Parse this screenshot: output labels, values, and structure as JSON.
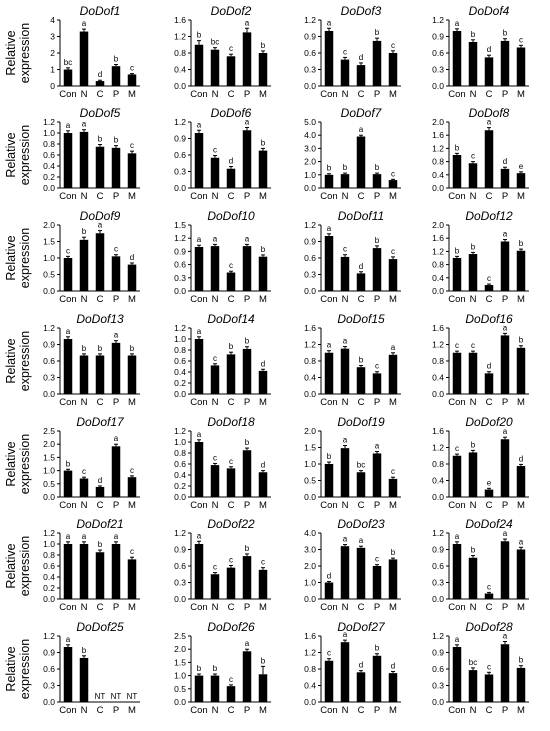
{
  "ylabel": [
    "Relative",
    "expression"
  ],
  "categories": [
    "Con",
    "N",
    "C",
    "P",
    "M"
  ],
  "chart_data": [
    {
      "type": "bar",
      "title": "DoDof1",
      "categories": [
        "Con",
        "N",
        "C",
        "P",
        "M"
      ],
      "values": [
        1.0,
        3.3,
        0.3,
        1.2,
        0.7
      ],
      "errors": [
        0.1,
        0.15,
        0.05,
        0.1,
        0.05
      ],
      "ylim": [
        0,
        4
      ],
      "yticks": [
        "0",
        "1",
        "2",
        "3",
        "4"
      ],
      "labels": [
        "bc",
        "a",
        "d",
        "b",
        "c"
      ]
    },
    {
      "type": "bar",
      "title": "DoDof2",
      "categories": [
        "Con",
        "N",
        "C",
        "P",
        "M"
      ],
      "values": [
        1.0,
        0.88,
        0.72,
        1.3,
        0.8
      ],
      "errors": [
        0.1,
        0.05,
        0.05,
        0.1,
        0.05
      ],
      "ylim": [
        0,
        1.6
      ],
      "yticks": [
        "0.0",
        "0.4",
        "0.8",
        "1.2",
        "1.6"
      ],
      "labels": [
        "b",
        "bc",
        "c",
        "a",
        "b"
      ]
    },
    {
      "type": "bar",
      "title": "DoDof3",
      "categories": [
        "Con",
        "N",
        "C",
        "P",
        "M"
      ],
      "values": [
        1.0,
        0.48,
        0.38,
        0.82,
        0.6
      ],
      "errors": [
        0.05,
        0.04,
        0.04,
        0.05,
        0.04
      ],
      "ylim": [
        0,
        1.2
      ],
      "yticks": [
        "0.0",
        "0.3",
        "0.6",
        "0.9",
        "1.2"
      ],
      "labels": [
        "a",
        "c",
        "d",
        "b",
        "c"
      ]
    },
    {
      "type": "bar",
      "title": "DoDof4",
      "categories": [
        "Con",
        "N",
        "C",
        "P",
        "M"
      ],
      "values": [
        1.0,
        0.8,
        0.52,
        0.82,
        0.7
      ],
      "errors": [
        0.04,
        0.04,
        0.04,
        0.04,
        0.04
      ],
      "ylim": [
        0,
        1.2
      ],
      "yticks": [
        "0.0",
        "0.3",
        "0.6",
        "0.9",
        "1.2"
      ],
      "labels": [
        "a",
        "b",
        "d",
        "b",
        "c"
      ]
    },
    {
      "type": "bar",
      "title": "DoDof5",
      "categories": [
        "Con",
        "N",
        "C",
        "P",
        "M"
      ],
      "values": [
        1.0,
        1.02,
        0.75,
        0.73,
        0.63
      ],
      "errors": [
        0.04,
        0.04,
        0.04,
        0.04,
        0.04
      ],
      "ylim": [
        0,
        1.2
      ],
      "yticks": [
        "0.0",
        "0.2",
        "0.4",
        "0.6",
        "0.8",
        "1.0",
        "1.2"
      ],
      "labels": [
        "a",
        "a",
        "b",
        "b",
        "c"
      ]
    },
    {
      "type": "bar",
      "title": "DoDof6",
      "categories": [
        "Con",
        "N",
        "C",
        "P",
        "M"
      ],
      "values": [
        1.0,
        0.55,
        0.35,
        1.05,
        0.68
      ],
      "errors": [
        0.05,
        0.04,
        0.04,
        0.05,
        0.04
      ],
      "ylim": [
        0,
        1.2
      ],
      "yticks": [
        "0.0",
        "0.3",
        "0.6",
        "0.9",
        "1.2"
      ],
      "labels": [
        "a",
        "c",
        "d",
        "a",
        "b"
      ]
    },
    {
      "type": "bar",
      "title": "DoDof7",
      "categories": [
        "Con",
        "N",
        "C",
        "P",
        "M"
      ],
      "values": [
        1.0,
        1.05,
        3.9,
        1.05,
        0.6
      ],
      "errors": [
        0.08,
        0.08,
        0.1,
        0.08,
        0.06
      ],
      "ylim": [
        0,
        5
      ],
      "yticks": [
        "0.0",
        "1.0",
        "2.0",
        "3.0",
        "4.0",
        "5.0"
      ],
      "labels": [
        "b",
        "b",
        "a",
        "b",
        "c"
      ]
    },
    {
      "type": "bar",
      "title": "DoDof8",
      "categories": [
        "Con",
        "N",
        "C",
        "P",
        "M"
      ],
      "values": [
        1.0,
        0.75,
        1.75,
        0.58,
        0.45
      ],
      "errors": [
        0.05,
        0.05,
        0.08,
        0.05,
        0.04
      ],
      "ylim": [
        0,
        2.0
      ],
      "yticks": [
        "0.0",
        "0.4",
        "0.8",
        "1.2",
        "1.6",
        "2.0"
      ],
      "labels": [
        "b",
        "c",
        "a",
        "d",
        "e"
      ]
    },
    {
      "type": "bar",
      "title": "DoDof9",
      "categories": [
        "Con",
        "N",
        "C",
        "P",
        "M"
      ],
      "values": [
        1.0,
        1.55,
        1.75,
        1.05,
        0.8
      ],
      "errors": [
        0.05,
        0.08,
        0.08,
        0.05,
        0.05
      ],
      "ylim": [
        0,
        2.0
      ],
      "yticks": [
        "0.0",
        "0.5",
        "1.0",
        "1.5",
        "2.0"
      ],
      "labels": [
        "c",
        "b",
        "a",
        "c",
        "d"
      ]
    },
    {
      "type": "bar",
      "title": "DoDof10",
      "categories": [
        "Con",
        "N",
        "C",
        "P",
        "M"
      ],
      "values": [
        1.0,
        1.02,
        0.42,
        1.02,
        0.78
      ],
      "errors": [
        0.04,
        0.04,
        0.03,
        0.04,
        0.04
      ],
      "ylim": [
        0,
        1.5
      ],
      "yticks": [
        "0.0",
        "0.3",
        "0.6",
        "0.9",
        "1.2",
        "1.5"
      ],
      "labels": [
        "a",
        "a",
        "c",
        "a",
        "b"
      ]
    },
    {
      "type": "bar",
      "title": "DoDof11",
      "categories": [
        "Con",
        "N",
        "C",
        "P",
        "M"
      ],
      "values": [
        1.0,
        0.62,
        0.32,
        0.78,
        0.58
      ],
      "errors": [
        0.04,
        0.04,
        0.03,
        0.04,
        0.04
      ],
      "ylim": [
        0,
        1.2
      ],
      "yticks": [
        "0.0",
        "0.3",
        "0.6",
        "0.9",
        "1.2"
      ],
      "labels": [
        "a",
        "c",
        "d",
        "b",
        "c"
      ]
    },
    {
      "type": "bar",
      "title": "DoDof12",
      "categories": [
        "Con",
        "N",
        "C",
        "P",
        "M"
      ],
      "values": [
        1.0,
        1.12,
        0.18,
        1.5,
        1.22
      ],
      "errors": [
        0.05,
        0.05,
        0.03,
        0.06,
        0.05
      ],
      "ylim": [
        0,
        2.0
      ],
      "yticks": [
        "0.0",
        "0.4",
        "0.8",
        "1.2",
        "1.6",
        "2.0"
      ],
      "labels": [
        "b",
        "b",
        "c",
        "a",
        "b"
      ]
    },
    {
      "type": "bar",
      "title": "DoDof13",
      "categories": [
        "Con",
        "N",
        "C",
        "P",
        "M"
      ],
      "values": [
        1.0,
        0.7,
        0.7,
        0.93,
        0.7
      ],
      "errors": [
        0.04,
        0.03,
        0.03,
        0.04,
        0.03
      ],
      "ylim": [
        0,
        1.2
      ],
      "yticks": [
        "0.0",
        "0.3",
        "0.6",
        "0.9",
        "1.2"
      ],
      "labels": [
        "a",
        "b",
        "b",
        "a",
        "b"
      ]
    },
    {
      "type": "bar",
      "title": "DoDof14",
      "categories": [
        "Con",
        "N",
        "C",
        "P",
        "M"
      ],
      "values": [
        1.0,
        0.52,
        0.72,
        0.82,
        0.42
      ],
      "errors": [
        0.04,
        0.03,
        0.04,
        0.04,
        0.03
      ],
      "ylim": [
        0,
        1.2
      ],
      "yticks": [
        "0.0",
        "0.2",
        "0.4",
        "0.6",
        "0.8",
        "1.0",
        "1.2"
      ],
      "labels": [
        "a",
        "c",
        "b",
        "b",
        "d"
      ]
    },
    {
      "type": "bar",
      "title": "DoDof15",
      "categories": [
        "Con",
        "N",
        "C",
        "P",
        "M"
      ],
      "values": [
        1.0,
        1.1,
        0.65,
        0.5,
        0.95
      ],
      "errors": [
        0.05,
        0.05,
        0.04,
        0.04,
        0.05
      ],
      "ylim": [
        0,
        1.6
      ],
      "yticks": [
        "0.0",
        "0.4",
        "0.8",
        "1.2",
        "1.6"
      ],
      "labels": [
        "a",
        "a",
        "b",
        "c",
        "a"
      ]
    },
    {
      "type": "bar",
      "title": "DoDof16",
      "categories": [
        "Con",
        "N",
        "C",
        "P",
        "M"
      ],
      "values": [
        1.0,
        1.0,
        0.5,
        1.42,
        1.12
      ],
      "errors": [
        0.04,
        0.04,
        0.04,
        0.05,
        0.05
      ],
      "ylim": [
        0,
        1.6
      ],
      "yticks": [
        "0.0",
        "0.4",
        "0.8",
        "1.2",
        "1.6"
      ],
      "labels": [
        "c",
        "c",
        "d",
        "a",
        "b"
      ]
    },
    {
      "type": "bar",
      "title": "DoDof17",
      "categories": [
        "Con",
        "N",
        "C",
        "P",
        "M"
      ],
      "values": [
        1.0,
        0.7,
        0.38,
        1.92,
        0.75
      ],
      "errors": [
        0.05,
        0.05,
        0.04,
        0.08,
        0.05
      ],
      "ylim": [
        0,
        2.5
      ],
      "yticks": [
        "0.0",
        "0.5",
        "1.0",
        "1.5",
        "2.0",
        "2.5"
      ],
      "labels": [
        "b",
        "c",
        "d",
        "a",
        "c"
      ]
    },
    {
      "type": "bar",
      "title": "DoDof18",
      "categories": [
        "Con",
        "N",
        "C",
        "P",
        "M"
      ],
      "values": [
        1.0,
        0.58,
        0.52,
        0.85,
        0.45
      ],
      "errors": [
        0.04,
        0.03,
        0.03,
        0.04,
        0.03
      ],
      "ylim": [
        0,
        1.2
      ],
      "yticks": [
        "0.0",
        "0.2",
        "0.4",
        "0.6",
        "0.8",
        "1.0",
        "1.2"
      ],
      "labels": [
        "a",
        "c",
        "c",
        "b",
        "d"
      ]
    },
    {
      "type": "bar",
      "title": "DoDof19",
      "categories": [
        "Con",
        "N",
        "C",
        "P",
        "M"
      ],
      "values": [
        1.0,
        1.48,
        0.75,
        1.32,
        0.55
      ],
      "errors": [
        0.06,
        0.08,
        0.05,
        0.06,
        0.05
      ],
      "ylim": [
        0,
        2.0
      ],
      "yticks": [
        "0.0",
        "0.5",
        "1.0",
        "1.5",
        "2.0"
      ],
      "labels": [
        "b",
        "a",
        "bc",
        "a",
        "c"
      ]
    },
    {
      "type": "bar",
      "title": "DoDof20",
      "categories": [
        "Con",
        "N",
        "C",
        "P",
        "M"
      ],
      "values": [
        1.0,
        1.08,
        0.18,
        1.4,
        0.75
      ],
      "errors": [
        0.04,
        0.05,
        0.03,
        0.05,
        0.04
      ],
      "ylim": [
        0,
        1.6
      ],
      "yticks": [
        "0.0",
        "0.4",
        "0.8",
        "1.2",
        "1.6"
      ],
      "labels": [
        "c",
        "b",
        "e",
        "a",
        "d"
      ]
    },
    {
      "type": "bar",
      "title": "DoDof21",
      "categories": [
        "Con",
        "N",
        "C",
        "P",
        "M"
      ],
      "values": [
        1.0,
        1.0,
        0.85,
        1.0,
        0.72
      ],
      "errors": [
        0.04,
        0.04,
        0.04,
        0.04,
        0.04
      ],
      "ylim": [
        0,
        1.2
      ],
      "yticks": [
        "0.0",
        "0.2",
        "0.4",
        "0.6",
        "0.8",
        "1.0",
        "1.2"
      ],
      "labels": [
        "a",
        "a",
        "b",
        "a",
        "c"
      ]
    },
    {
      "type": "bar",
      "title": "DoDof22",
      "categories": [
        "Con",
        "N",
        "C",
        "P",
        "M"
      ],
      "values": [
        1.0,
        0.45,
        0.57,
        0.78,
        0.53
      ],
      "errors": [
        0.05,
        0.03,
        0.04,
        0.04,
        0.04
      ],
      "ylim": [
        0,
        1.2
      ],
      "yticks": [
        "0.0",
        "0.3",
        "0.6",
        "0.9",
        "1.2"
      ],
      "labels": [
        "a",
        "c",
        "c",
        "b",
        "c"
      ]
    },
    {
      "type": "bar",
      "title": "DoDof23",
      "categories": [
        "Con",
        "N",
        "C",
        "P",
        "M"
      ],
      "values": [
        1.0,
        3.2,
        3.1,
        2.0,
        2.4
      ],
      "errors": [
        0.06,
        0.1,
        0.1,
        0.08,
        0.08
      ],
      "ylim": [
        0,
        4.0
      ],
      "yticks": [
        "0.0",
        "1.0",
        "2.0",
        "3.0",
        "4.0"
      ],
      "labels": [
        "d",
        "a",
        "a",
        "c",
        "b"
      ]
    },
    {
      "type": "bar",
      "title": "DoDof24",
      "categories": [
        "Con",
        "N",
        "C",
        "P",
        "M"
      ],
      "values": [
        1.0,
        0.75,
        0.1,
        1.05,
        0.9
      ],
      "errors": [
        0.04,
        0.04,
        0.02,
        0.04,
        0.04
      ],
      "ylim": [
        0,
        1.2
      ],
      "yticks": [
        "0.0",
        "0.3",
        "0.6",
        "0.9",
        "1.2"
      ],
      "labels": [
        "a",
        "b",
        "c",
        "a",
        "a"
      ]
    },
    {
      "type": "bar",
      "title": "DoDof25",
      "categories": [
        "Con",
        "N",
        "C",
        "P",
        "M"
      ],
      "values": [
        1.0,
        0.8,
        null,
        null,
        null
      ],
      "errors": [
        0.04,
        0.04,
        0,
        0,
        0
      ],
      "ylim": [
        0,
        1.2
      ],
      "yticks": [
        "0.0",
        "0.3",
        "0.6",
        "0.9",
        "1.2"
      ],
      "labels": [
        "a",
        "b",
        "NT",
        "NT",
        "NT"
      ]
    },
    {
      "type": "bar",
      "title": "DoDof26",
      "categories": [
        "Con",
        "N",
        "C",
        "P",
        "M"
      ],
      "values": [
        1.0,
        1.0,
        0.6,
        1.92,
        1.05
      ],
      "errors": [
        0.06,
        0.06,
        0.05,
        0.08,
        0.3
      ],
      "ylim": [
        0,
        2.5
      ],
      "yticks": [
        "0.0",
        "0.5",
        "1.0",
        "1.5",
        "2.0",
        "2.5"
      ],
      "labels": [
        "b",
        "b",
        "c",
        "a",
        "b"
      ]
    },
    {
      "type": "bar",
      "title": "DoDof27",
      "categories": [
        "Con",
        "N",
        "C",
        "P",
        "M"
      ],
      "values": [
        1.0,
        1.45,
        0.72,
        1.12,
        0.7
      ],
      "errors": [
        0.05,
        0.05,
        0.04,
        0.05,
        0.04
      ],
      "ylim": [
        0,
        1.6
      ],
      "yticks": [
        "0.0",
        "0.4",
        "0.8",
        "1.2",
        "1.6"
      ],
      "labels": [
        "c",
        "a",
        "d",
        "b",
        "d"
      ]
    },
    {
      "type": "bar",
      "title": "DoDof28",
      "categories": [
        "Con",
        "N",
        "C",
        "P",
        "M"
      ],
      "values": [
        1.0,
        0.58,
        0.5,
        1.05,
        0.62
      ],
      "errors": [
        0.04,
        0.04,
        0.04,
        0.05,
        0.04
      ],
      "ylim": [
        0,
        1.2
      ],
      "yticks": [
        "0.0",
        "0.3",
        "0.6",
        "0.9",
        "1.2"
      ],
      "labels": [
        "a",
        "bc",
        "c",
        "a",
        "b"
      ]
    }
  ]
}
